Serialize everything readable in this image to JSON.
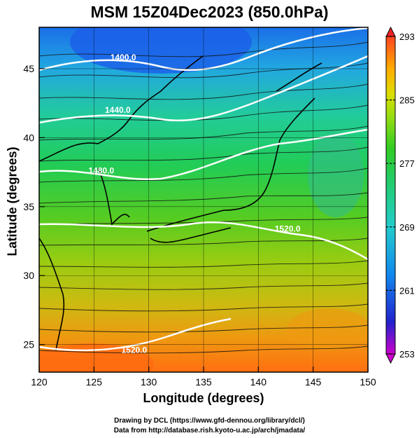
{
  "title": "MSM 15Z04Dec2023 (850.0hPa)",
  "x_axis": {
    "label": "Longitude (degrees)",
    "ticks": [
      "120",
      "125",
      "130",
      "135",
      "140",
      "145",
      "150"
    ]
  },
  "y_axis": {
    "label": "Latitude  (degrees)",
    "ticks": [
      "25",
      "30",
      "35",
      "40",
      "45"
    ]
  },
  "colorbar": {
    "ticks": [
      "293",
      "285",
      "277",
      "269",
      "261",
      "253"
    ],
    "min": 253,
    "max": 293,
    "colors": [
      "#cc00cc",
      "#2222cc",
      "#1188ee",
      "#22cccc",
      "#22cc66",
      "#33cc22",
      "#99dd11",
      "#dddd00",
      "#ffaa00",
      "#ff6611",
      "#ee2222"
    ]
  },
  "map": {
    "lon_range": [
      120,
      150
    ],
    "lat_range": [
      23,
      48
    ],
    "contour_labels": [
      "1400.0",
      "1440.0",
      "1480.0",
      "1520.0",
      "1520.0"
    ]
  },
  "credits": {
    "line1": "Drawing by DCL (https://www.gfd-dennou.org/library/dcl/)",
    "line2": "Data from http://database.rish.kyoto-u.ac.jp/arch/jmadata/"
  }
}
